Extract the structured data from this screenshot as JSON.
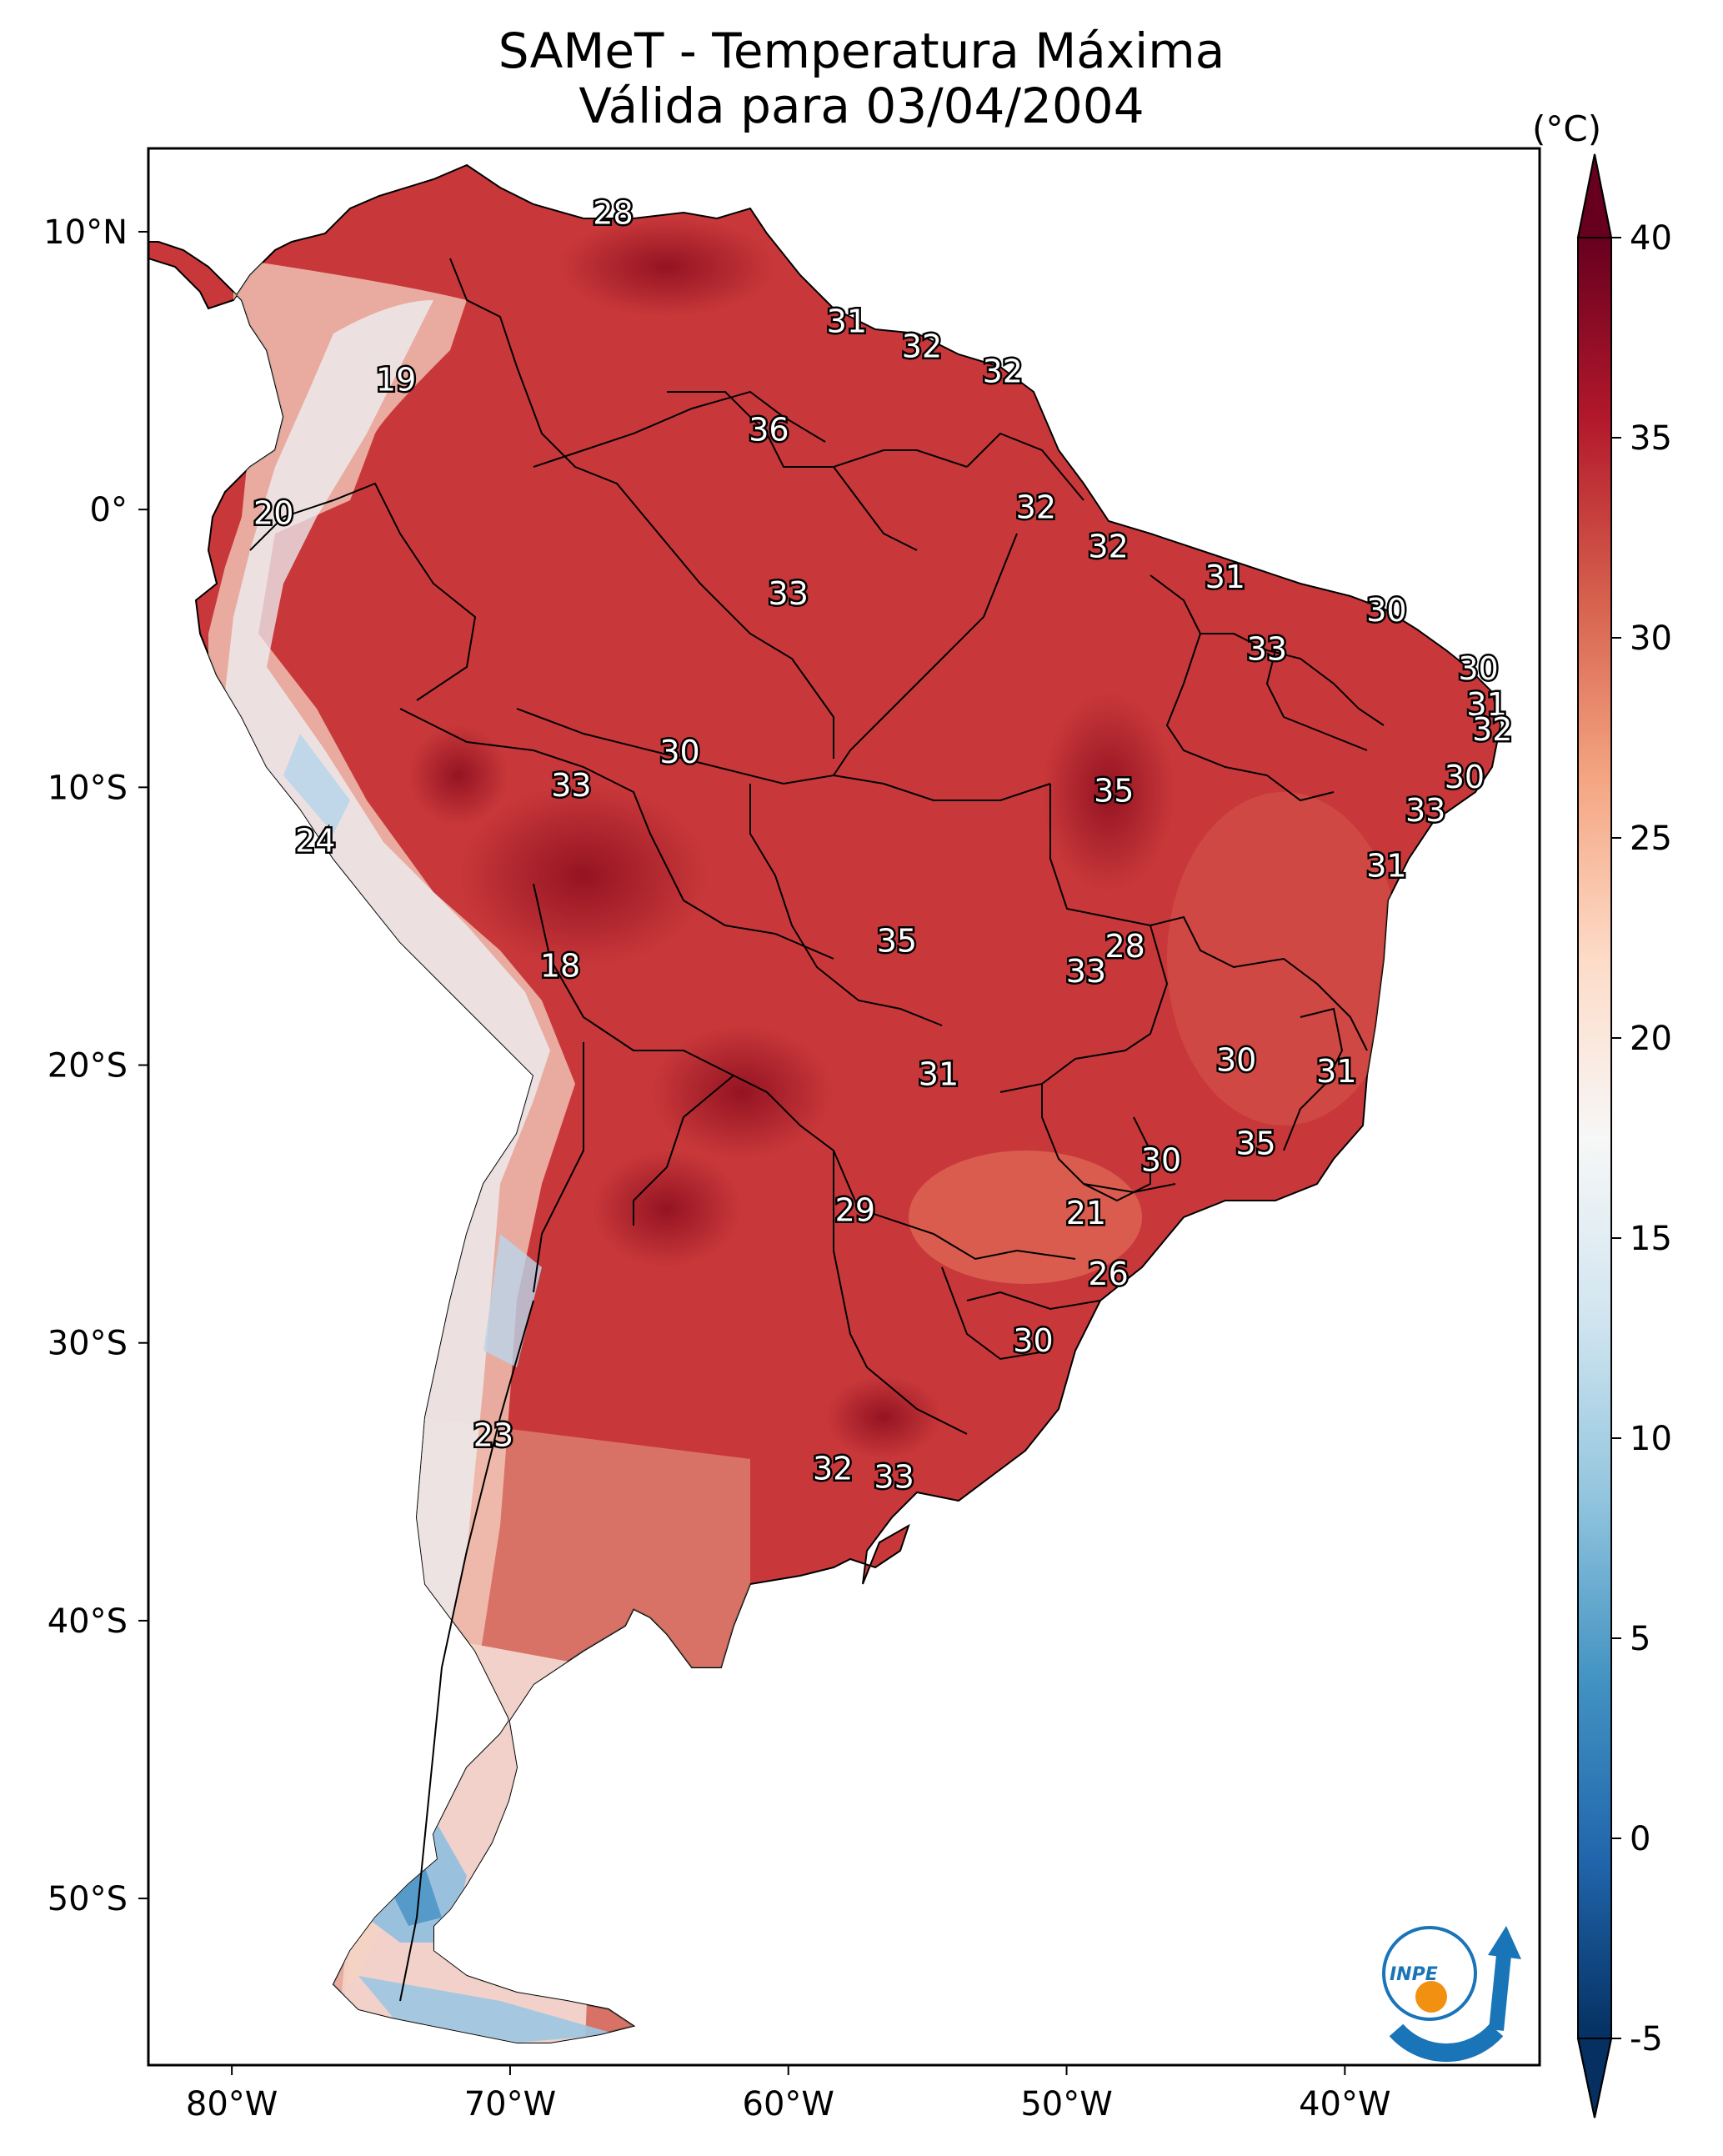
{
  "title": {
    "line1": "SAMeT - Temperatura Máxima",
    "line2": "Válida para 03/04/2004"
  },
  "map": {
    "lon_range": [
      -83,
      -33
    ],
    "lat_range": [
      -56,
      13
    ],
    "lon_ticks": [
      {
        "value": -80,
        "label": "80°W"
      },
      {
        "value": -70,
        "label": "70°W"
      },
      {
        "value": -60,
        "label": "60°W"
      },
      {
        "value": -50,
        "label": "50°W"
      },
      {
        "value": -40,
        "label": "40°W"
      }
    ],
    "lat_ticks": [
      {
        "value": 10,
        "label": "10°N"
      },
      {
        "value": 0,
        "label": "0°"
      },
      {
        "value": -10,
        "label": "10°S"
      },
      {
        "value": -20,
        "label": "20°S"
      },
      {
        "value": -30,
        "label": "30°S"
      },
      {
        "value": -40,
        "label": "40°S"
      },
      {
        "value": -50,
        "label": "50°S"
      }
    ],
    "station_values": [
      {
        "lon": -66.3,
        "lat": 10.6,
        "value": "28"
      },
      {
        "lon": -74.1,
        "lat": 4.6,
        "value": "19"
      },
      {
        "lon": -78.5,
        "lat": -0.2,
        "value": "20"
      },
      {
        "lon": -57.9,
        "lat": 6.7,
        "value": "31"
      },
      {
        "lon": -55.2,
        "lat": 5.8,
        "value": "32"
      },
      {
        "lon": -52.3,
        "lat": 4.9,
        "value": "32"
      },
      {
        "lon": -60.7,
        "lat": 2.8,
        "value": "36"
      },
      {
        "lon": -60.0,
        "lat": -3.1,
        "value": "33"
      },
      {
        "lon": -51.1,
        "lat": 0.0,
        "value": "32"
      },
      {
        "lon": -48.5,
        "lat": -1.4,
        "value": "32"
      },
      {
        "lon": -44.3,
        "lat": -2.5,
        "value": "31"
      },
      {
        "lon": -38.5,
        "lat": -3.7,
        "value": "30"
      },
      {
        "lon": -42.8,
        "lat": -5.1,
        "value": "33"
      },
      {
        "lon": -35.2,
        "lat": -5.8,
        "value": "30"
      },
      {
        "lon": -34.9,
        "lat": -7.1,
        "value": "31"
      },
      {
        "lon": -34.7,
        "lat": -8.0,
        "value": "32"
      },
      {
        "lon": -35.7,
        "lat": -9.7,
        "value": "30"
      },
      {
        "lon": -37.1,
        "lat": -10.9,
        "value": "33"
      },
      {
        "lon": -38.5,
        "lat": -12.9,
        "value": "31"
      },
      {
        "lon": -63.9,
        "lat": -8.8,
        "value": "30"
      },
      {
        "lon": -67.8,
        "lat": -10.0,
        "value": "33"
      },
      {
        "lon": -48.3,
        "lat": -10.2,
        "value": "35"
      },
      {
        "lon": -77.0,
        "lat": -12.0,
        "value": "24"
      },
      {
        "lon": -56.1,
        "lat": -15.6,
        "value": "35"
      },
      {
        "lon": -47.9,
        "lat": -15.8,
        "value": "28"
      },
      {
        "lon": -49.3,
        "lat": -16.7,
        "value": "33"
      },
      {
        "lon": -68.2,
        "lat": -16.5,
        "value": "18"
      },
      {
        "lon": -54.6,
        "lat": -20.4,
        "value": "31"
      },
      {
        "lon": -43.9,
        "lat": -19.9,
        "value": "30"
      },
      {
        "lon": -40.3,
        "lat": -20.3,
        "value": "31"
      },
      {
        "lon": -43.2,
        "lat": -22.9,
        "value": "35"
      },
      {
        "lon": -46.6,
        "lat": -23.5,
        "value": "30"
      },
      {
        "lon": -57.6,
        "lat": -25.3,
        "value": "29"
      },
      {
        "lon": -49.3,
        "lat": -25.4,
        "value": "21"
      },
      {
        "lon": -48.5,
        "lat": -27.6,
        "value": "26"
      },
      {
        "lon": -51.2,
        "lat": -30.0,
        "value": "30"
      },
      {
        "lon": -70.6,
        "lat": -33.4,
        "value": "23"
      },
      {
        "lon": -58.4,
        "lat": -34.6,
        "value": "32"
      },
      {
        "lon": -56.2,
        "lat": -34.9,
        "value": "33"
      }
    ]
  },
  "colorbar": {
    "units": "(°C)",
    "range": [
      -5,
      40
    ],
    "ticks": [
      "-5",
      "0",
      "5",
      "10",
      "15",
      "20",
      "25",
      "30",
      "35",
      "40"
    ],
    "colors": [
      "#053061",
      "#2166ac",
      "#4393c3",
      "#92c5de",
      "#d1e5f0",
      "#f7f7f7",
      "#fddbc7",
      "#f4a582",
      "#d6604d",
      "#b2182b",
      "#67001f"
    ]
  },
  "logo": {
    "text": "INPE",
    "colors": {
      "blue": "#1a74b8",
      "orange": "#f29111"
    }
  },
  "colors": {
    "land_hot": "#b7262e",
    "land_warm": "#cf4a3f",
    "land_mild": "#ec9c7d",
    "land_cool": "#f5e6df",
    "land_cold": "#93c0de",
    "ocean": "#ffffff"
  }
}
